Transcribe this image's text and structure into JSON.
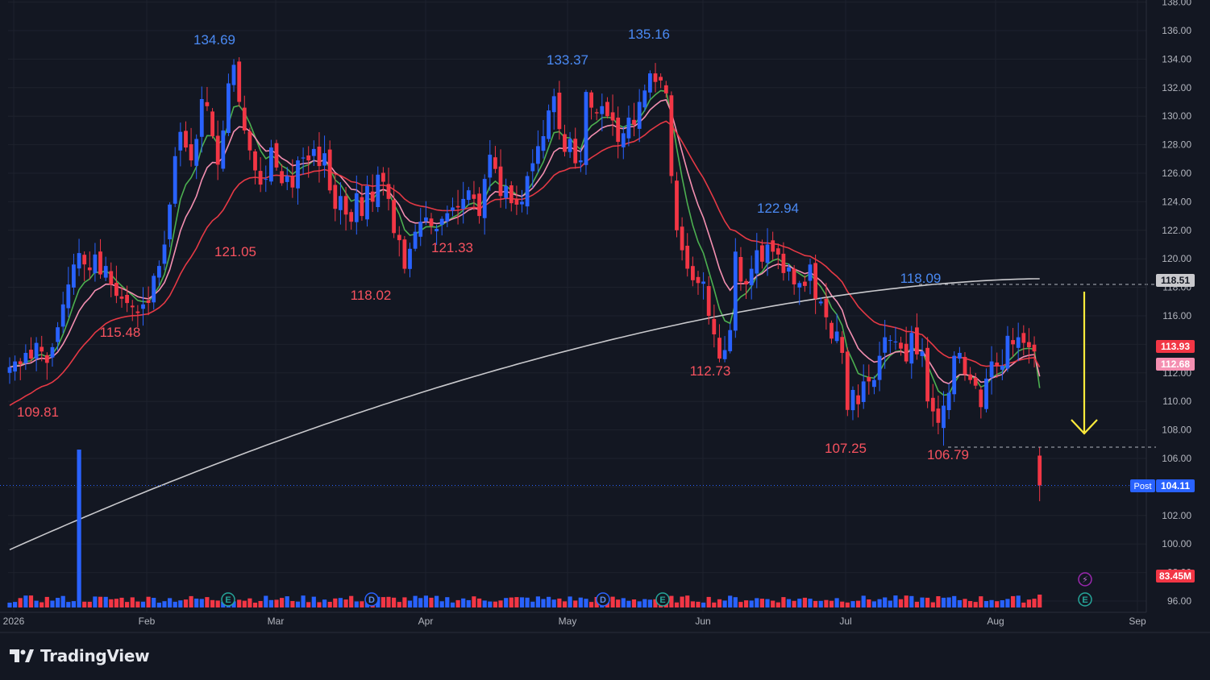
{
  "brand": "TradingView",
  "colors": {
    "background": "#131722",
    "grid": "#1e222d",
    "axis_text": "#b2b5be",
    "up": "#2962ff",
    "down": "#f23645",
    "high_label": "#4a8af4",
    "low_label": "#f7525f",
    "ema_fast": "#4caf50",
    "ema_mid": "#f48fb1",
    "ema_slow": "#e53945",
    "ma_long": "#c9c9cd",
    "annotation_arrow": "#ffeb3b"
  },
  "chart_data": {
    "type": "candlestick",
    "y_axis_ticks": [
      "96.00",
      "98.00",
      "100.00",
      "102.00",
      "104.00",
      "106.00",
      "108.00",
      "110.00",
      "112.00",
      "114.00",
      "116.00",
      "118.00",
      "120.00",
      "122.00",
      "124.00",
      "126.00",
      "128.00",
      "130.00",
      "132.00",
      "134.00",
      "136.00",
      "138.00"
    ],
    "ylim": [
      95,
      138
    ],
    "x_axis_labels": [
      "2026",
      "Feb",
      "Mar",
      "Apr",
      "May",
      "Jun",
      "Jul",
      "Aug",
      "Sep"
    ],
    "price_annotations": [
      {
        "text": "134.69",
        "kind": "high",
        "value": 134.69
      },
      {
        "text": "135.16",
        "kind": "high",
        "value": 135.16
      },
      {
        "text": "133.37",
        "kind": "high",
        "value": 133.37
      },
      {
        "text": "122.94",
        "kind": "high",
        "value": 122.94
      },
      {
        "text": "118.09",
        "kind": "high",
        "value": 118.09
      },
      {
        "text": "109.81",
        "kind": "low",
        "value": 109.81
      },
      {
        "text": "115.48",
        "kind": "low",
        "value": 115.48
      },
      {
        "text": "121.05",
        "kind": "low",
        "value": 121.05
      },
      {
        "text": "118.02",
        "kind": "low",
        "value": 118.02
      },
      {
        "text": "121.33",
        "kind": "low",
        "value": 121.33
      },
      {
        "text": "112.73",
        "kind": "low",
        "value": 112.73
      },
      {
        "text": "107.25",
        "kind": "low",
        "value": 107.25
      },
      {
        "text": "106.79",
        "kind": "low",
        "value": 106.79
      }
    ],
    "last_value_badges": [
      {
        "text": "118.51",
        "value": 118.51,
        "color": "#c9c9cd"
      },
      {
        "text": "113.93",
        "value": 113.93,
        "color": "#f23645"
      },
      {
        "text": "112.68",
        "value": 112.68,
        "color": "#f48fb1"
      },
      {
        "text": "104.11",
        "value": 104.11,
        "color": "#2962ff",
        "prefix": "Post"
      }
    ],
    "volume_badge": {
      "text": "83.45M"
    },
    "event_markers": [
      "E",
      "D",
      "D",
      "E",
      "E",
      "E"
    ],
    "horizontal_levels": [
      118.2,
      106.79
    ],
    "closes": [
      112.4,
      112.8,
      112.6,
      113.4,
      113.0,
      114.1,
      113.5,
      112.7,
      113.8,
      115.2,
      116.8,
      118.2,
      119.6,
      120.4,
      119.6,
      119.2,
      120.3,
      118.9,
      119.5,
      118.2,
      117.4,
      117.2,
      116.9,
      116.6,
      116.2,
      116.8,
      116.9,
      118.8,
      119.5,
      121.0,
      123.8,
      127.2,
      128.9,
      127.8,
      126.9,
      128.4,
      131.2,
      130.7,
      128.6,
      126.6,
      129.0,
      132.3,
      133.6,
      131.0,
      129.0,
      127.6,
      126.2,
      125.2,
      125.6,
      127.8,
      126.4,
      125.3,
      125.8,
      125.0,
      126.9,
      127.1,
      126.9,
      127.7,
      126.5,
      127.4,
      124.8,
      123.5,
      124.4,
      123.1,
      122.6,
      124.6,
      123.0,
      125.1,
      124.0,
      125.9,
      125.4,
      124.2,
      121.8,
      121.3,
      119.3,
      120.7,
      121.9,
      122.6,
      122.9,
      122.3,
      122.1,
      122.8,
      123.2,
      123.6,
      123.6,
      124.2,
      124.8,
      124.2,
      123.0,
      125.6,
      127.3,
      126.3,
      124.4,
      125.1,
      123.9,
      123.8,
      124.0,
      125.8,
      126.7,
      127.9,
      128.6,
      130.4,
      131.4,
      129.1,
      127.5,
      128.4,
      126.7,
      126.9,
      131.7,
      130.6,
      130.2,
      130.7,
      130.0,
      129.7,
      128.2,
      128.8,
      129.9,
      129.4,
      131.0,
      131.8,
      133.0,
      132.4,
      132.5,
      131.6,
      125.8,
      122.0,
      120.6,
      119.3,
      118.5,
      118.3,
      118.4,
      116.0,
      114.7,
      113.0,
      113.6,
      115.0,
      120.5,
      118.4,
      118.2,
      119.3,
      120.6,
      119.8,
      121.0,
      120.5,
      120.3,
      119.0,
      119.4,
      118.2,
      118.3,
      118.1,
      119.6,
      117.2,
      117.0,
      115.9,
      114.4,
      114.9,
      113.4,
      109.4,
      110.8,
      109.8,
      111.4,
      111.4,
      111.5,
      113.2,
      114.5,
      114.3,
      114.2,
      113.7,
      112.8,
      114.8,
      113.3,
      113.5,
      110.0,
      109.3,
      108.5,
      109.7,
      110.6,
      113.2,
      113.4,
      111.9,
      111.5,
      111.1,
      109.6,
      111.6,
      112.8,
      112.5,
      112.5,
      114.6,
      114.0,
      114.5,
      114.1,
      113.8,
      113.5,
      104.11
    ],
    "last_close": 104.11,
    "volume_note": "Volume histogram along the bottom; one large spike in late January"
  }
}
